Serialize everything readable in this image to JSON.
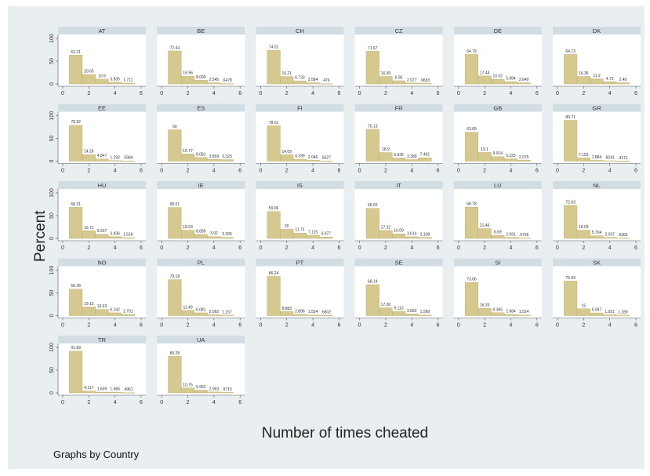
{
  "labels": {
    "ylabel": "Percent",
    "xlabel": "Number of times cheated",
    "note": "Graphs by Country"
  },
  "colors": {
    "bar": "#d6c990",
    "bar_stroke": "#b8a96a",
    "header": "#d2dde3",
    "panel": "#ffffff"
  },
  "chart_data": {
    "type": "bar",
    "layout": "small-multiples",
    "x_ticks": [
      0,
      2,
      4,
      6
    ],
    "xlim": [
      0,
      6
    ],
    "y_ticks": [
      0,
      50,
      100
    ],
    "ylim": [
      0,
      100
    ],
    "bar_x": [
      1,
      2,
      3,
      4,
      5
    ],
    "panels": [
      {
        "name": "AT",
        "values": [
          63.21,
          20.65,
          10.5,
          3.835,
          1.711
        ],
        "labels": [
          "63.21",
          "20.65",
          "10.5",
          "3.835",
          "1.711"
        ]
      },
      {
        "name": "BE",
        "values": [
          72.44,
          16.96,
          8.009,
          2.545,
          0.6478
        ],
        "labels": [
          "72.44",
          "16.96",
          "8.009",
          "2.545",
          ".6478"
        ]
      },
      {
        "name": "CH",
        "values": [
          74.01,
          16.21,
          6.733,
          2.584,
          0.476
        ],
        "labels": [
          "74.01",
          "16.21",
          "6.733",
          "2.584",
          ".476"
        ]
      },
      {
        "name": "CZ",
        "values": [
          71.67,
          16.39,
          6.95,
          2.027,
          0.9653
        ],
        "labels": [
          "71.67",
          "16.39",
          "6.95",
          "2.027",
          ".9653"
        ]
      },
      {
        "name": "DE",
        "values": [
          64.79,
          17.44,
          10.02,
          5.084,
          2.649
        ],
        "labels": [
          "64.79",
          "17.44",
          "10.02",
          "5.084",
          "2.649"
        ]
      },
      {
        "name": "DK",
        "values": [
          64.73,
          16.36,
          11.2,
          4.73,
          2.49
        ],
        "labels": [
          "64.73",
          "16.36",
          "11.2",
          "4.73",
          "2.49"
        ]
      },
      {
        "name": "EE",
        "values": [
          78.92,
          14.26,
          4.847,
          1.292,
          0.5984
        ],
        "labels": [
          "78.92",
          "14.26",
          "4.847",
          "1.292",
          ".5984"
        ]
      },
      {
        "name": "ES",
        "values": [
          69,
          15.77,
          8.081,
          3.859,
          3.323
        ],
        "labels": [
          "69",
          "15.77",
          "8.081",
          "3.859",
          "3.323"
        ]
      },
      {
        "name": "FI",
        "values": [
          78.01,
          14.09,
          4.399,
          2.046,
          0.5627
        ],
        "labels": [
          "78.01",
          "14.09",
          "4.399",
          "2.046",
          ".5627"
        ]
      },
      {
        "name": "FR",
        "values": [
          70.13,
          18.9,
          6.935,
          3.389,
          7.461
        ],
        "labels": [
          "70.13",
          "18.9",
          "6.935",
          "3.389",
          "7.461"
        ]
      },
      {
        "name": "GB",
        "values": [
          63.69,
          19.1,
          9.914,
          5.225,
          2.075
        ],
        "labels": [
          "63.69",
          "19.1",
          "9.914",
          "5.225",
          "2.075"
        ]
      },
      {
        "name": "GR",
        "values": [
          89.71,
          7.153,
          1.884,
          0.8241,
          0.4171
        ],
        "labels": [
          "89.71",
          "7.153",
          "1.884",
          ".8241",
          ".4171"
        ]
      },
      {
        "name": "HU",
        "values": [
          68.31,
          16.71,
          9.207,
          3.836,
          1.516
        ],
        "labels": [
          "68.31",
          "16.71",
          "9.207",
          "3.836",
          "1.516"
        ]
      },
      {
        "name": "IE",
        "values": [
          68.01,
          18.03,
          8.839,
          3.92,
          2.205
        ],
        "labels": [
          "68.01",
          "18.03",
          "8.839",
          "3.92",
          "2.205"
        ]
      },
      {
        "name": "IS",
        "values": [
          59.06,
          20,
          11.73,
          7.115,
          3.077
        ],
        "labels": [
          "59.06",
          "20",
          "11.73",
          "7.115",
          "3.077"
        ]
      },
      {
        "name": "IT",
        "values": [
          66.02,
          17.32,
          10.09,
          3.614,
          2.108
        ],
        "labels": [
          "66.02",
          "17.32",
          "10.09",
          "3.614",
          "2.108"
        ]
      },
      {
        "name": "LU",
        "values": [
          68.78,
          21.46,
          6.69,
          2.091,
          0.9756
        ],
        "labels": [
          "68.78",
          "21.46",
          "6.69",
          "2.091",
          ".9756"
        ]
      },
      {
        "name": "NL",
        "values": [
          72.63,
          18.03,
          5.704,
          2.037,
          0.6365
        ],
        "labels": [
          "72.63",
          "18.03",
          "5.704",
          "2.037",
          ".6365"
        ]
      },
      {
        "name": "NO",
        "values": [
          58.28,
          19.15,
          13.63,
          6.242,
          2.701
        ],
        "labels": [
          "58.28",
          "19.15",
          "13.63",
          "6.242",
          "2.701"
        ]
      },
      {
        "name": "PL",
        "values": [
          79.18,
          11.49,
          6.081,
          2.092,
          1.157
        ],
        "labels": [
          "79.18",
          "11.49",
          "6.081",
          "2.092",
          "1.157"
        ]
      },
      {
        "name": "PT",
        "values": [
          86.24,
          8.883,
          2.896,
          1.524,
          0.6602
        ],
        "labels": [
          "86.24",
          "8.883",
          "2.896",
          "1.524",
          ".6602"
        ]
      },
      {
        "name": "SE",
        "values": [
          68.14,
          17.26,
          9.113,
          3.862,
          1.569
        ],
        "labels": [
          "68.14",
          "17.26",
          "9.113",
          "3.862",
          "1.569"
        ]
      },
      {
        "name": "SI",
        "values": [
          73.06,
          16.33,
          6.365,
          2.684,
          1.524
        ],
        "labels": [
          "73.06",
          "16.33",
          "6.365",
          "2.684",
          "1.524"
        ]
      },
      {
        "name": "SK",
        "values": [
          75.94,
          15,
          5.947,
          1.921,
          1.189
        ],
        "labels": [
          "75.94",
          "15",
          "5.947",
          "1.921",
          "1.189"
        ]
      },
      {
        "name": "TR",
        "values": [
          91.89,
          4.117,
          1.609,
          1.684,
          0.4961
        ],
        "labels": [
          "91.89",
          "4.117",
          "1.609",
          "1.684",
          ".4961"
        ]
      },
      {
        "name": "UA",
        "values": [
          80.28,
          10.75,
          5.952,
          2.063,
          0.9715
        ],
        "labels": [
          "80.28",
          "10.75",
          "5.952",
          "2.063",
          ".9715"
        ]
      }
    ]
  }
}
